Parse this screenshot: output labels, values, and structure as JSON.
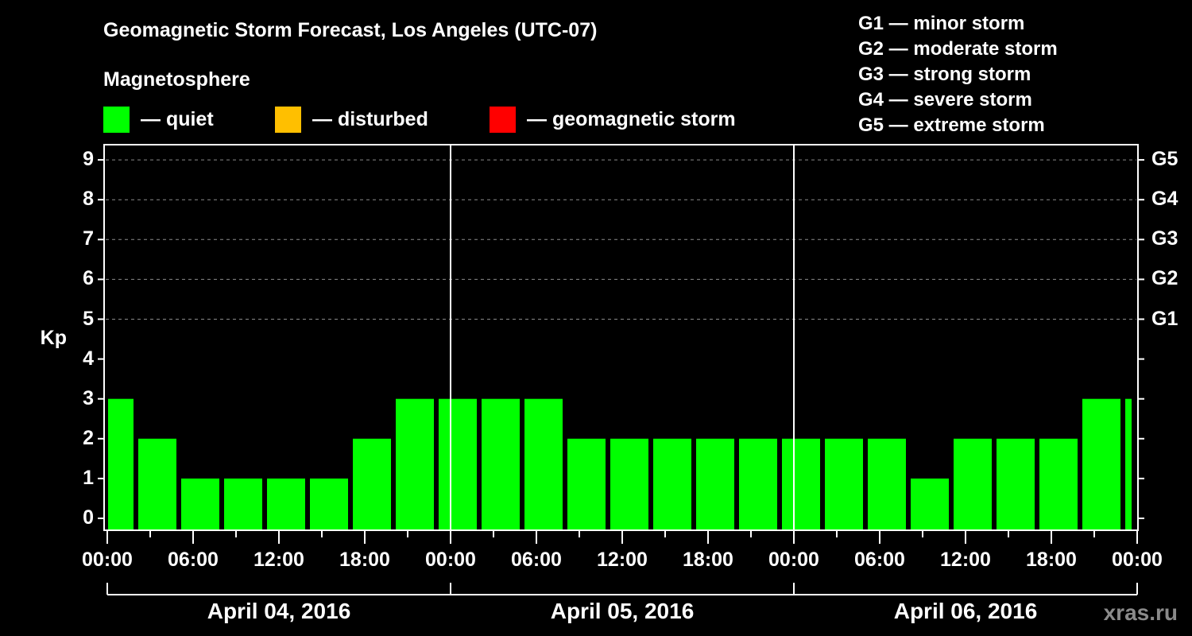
{
  "header": {
    "title": "Geomagnetic Storm Forecast, Los Angeles (UTC-07)",
    "subtitle": "Magnetosphere"
  },
  "legend": [
    {
      "label": "— quiet",
      "color": "#00ff00"
    },
    {
      "label": "— disturbed",
      "color": "#ffbf00"
    },
    {
      "label": "— geomagnetic storm",
      "color": "#ff0000"
    }
  ],
  "g_scale": [
    "G1 — minor storm",
    "G2 — moderate storm",
    "G3 — strong storm",
    "G4 — severe storm",
    "G5 — extreme storm"
  ],
  "axes": {
    "ylabel": "Kp",
    "yticks": [
      "0",
      "1",
      "2",
      "3",
      "4",
      "5",
      "6",
      "7",
      "8",
      "9"
    ],
    "right_ticks": [
      "G1",
      "G2",
      "G3",
      "G4",
      "G5"
    ],
    "xticks": [
      "00:00",
      "06:00",
      "12:00",
      "18:00",
      "00:00",
      "06:00",
      "12:00",
      "18:00",
      "00:00",
      "06:00",
      "12:00",
      "18:00",
      "00:00"
    ],
    "dates": [
      "April 04, 2016",
      "April 05, 2016",
      "April 06, 2016"
    ]
  },
  "watermark": "xras.ru",
  "chart_data": {
    "type": "bar",
    "title": "Geomagnetic Storm Forecast, Los Angeles (UTC-07)",
    "xlabel": "",
    "ylabel": "Kp",
    "ylim": [
      0,
      9
    ],
    "grid": "dashed horizontal at Kp 5-9",
    "categories": [
      "Apr04 00:00-02:00",
      "02:00-05:00",
      "05:00-08:00",
      "08:00-11:00",
      "11:00-14:00",
      "14:00-17:00",
      "17:00-20:00",
      "20:00-23:00",
      "Apr04 23:00-Apr05 02:00",
      "02:00-05:00",
      "05:00-08:00",
      "08:00-11:00",
      "11:00-14:00",
      "14:00-17:00",
      "17:00-20:00",
      "20:00-23:00",
      "Apr05 23:00-Apr06 02:00",
      "02:00-05:00",
      "05:00-08:00",
      "08:00-11:00",
      "11:00-14:00",
      "14:00-17:00",
      "17:00-20:00",
      "20:00-23:00",
      "23:00-00:00"
    ],
    "values": [
      3,
      2,
      1,
      1,
      1,
      1,
      2,
      3,
      3,
      3,
      3,
      2,
      2,
      2,
      2,
      2,
      2,
      2,
      2,
      1,
      2,
      2,
      2,
      3,
      3
    ],
    "bar_color": "#00ff00",
    "right_axis": {
      "G1": 5,
      "G2": 6,
      "G3": 7,
      "G4": 8,
      "G5": 9
    }
  }
}
